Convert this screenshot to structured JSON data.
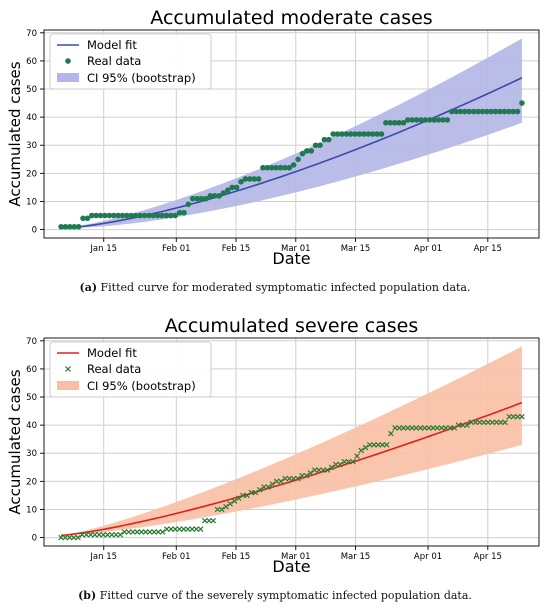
{
  "colors": {
    "moderate_line": "#3a4ba8",
    "moderate_band": "#b3b6e6",
    "moderate_points": "#1f7a52",
    "severe_line": "#e0221a",
    "severe_band": "#f8bfa4",
    "severe_points": "#2a7a30"
  },
  "captions": [
    {
      "letter": "(a)",
      "text": "Fitted curve for moderated symptomatic infected population data."
    },
    {
      "letter": "(b)",
      "text": "Fitted curve of the severely symptomatic infected population data."
    }
  ],
  "chart_data": [
    {
      "type": "line",
      "title": "Accumulated moderate cases",
      "xlabel": "Date",
      "ylabel": "Accumulated cases",
      "x_start": "2021-01-05",
      "x_end": "2021-04-23",
      "xlim": [
        "2021-01-01",
        "2021-04-27"
      ],
      "ylim": [
        -3,
        71
      ],
      "x_ticks": [
        {
          "date": "2021-01-15",
          "label": "Jan 15"
        },
        {
          "date": "2021-02-01",
          "label": "Feb 01"
        },
        {
          "date": "2021-02-15",
          "label": "Feb 15"
        },
        {
          "date": "2021-03-01",
          "label": "Mar 01"
        },
        {
          "date": "2021-03-15",
          "label": "Mar 15"
        },
        {
          "date": "2021-04-01",
          "label": "Apr 01"
        },
        {
          "date": "2021-04-15",
          "label": "Apr 15"
        }
      ],
      "y_ticks": [
        0,
        10,
        20,
        30,
        40,
        50,
        60,
        70
      ],
      "grid": true,
      "legend_position": "top-left",
      "legend": [
        "Model fit",
        "Real data",
        "CI 95% (bootstrap)"
      ],
      "marker": "circle",
      "fit_curve": {
        "power": 1.45,
        "start_value": 0.5,
        "end_value": 54
      },
      "ci_band": {
        "lower_end": 38,
        "upper_end": 68
      },
      "real_data": [
        1,
        1,
        1,
        1,
        1,
        4,
        4,
        5,
        5,
        5,
        5,
        5,
        5,
        5,
        5,
        5,
        5,
        5,
        5,
        5,
        5,
        5,
        5,
        5,
        5,
        5,
        5,
        6,
        6,
        9,
        11,
        11,
        11,
        11,
        12,
        12,
        12,
        13,
        14,
        15,
        15,
        17,
        18,
        18,
        18,
        18,
        22,
        22,
        22,
        22,
        22,
        22,
        22,
        23,
        25,
        27,
        28,
        28,
        30,
        30,
        32,
        32,
        34,
        34,
        34,
        34,
        34,
        34,
        34,
        34,
        34,
        34,
        34,
        34,
        38,
        38,
        38,
        38,
        38,
        39,
        39,
        39,
        39,
        39,
        39,
        39,
        39,
        39,
        39,
        42,
        42,
        42,
        42,
        42,
        42,
        42,
        42,
        42,
        42,
        42,
        42,
        42,
        42,
        42,
        42,
        45
      ]
    },
    {
      "type": "line",
      "title": "Accumulated severe cases",
      "xlabel": "Date",
      "ylabel": "Accumulated cases",
      "x_start": "2021-01-05",
      "x_end": "2021-04-23",
      "xlim": [
        "2021-01-01",
        "2021-04-27"
      ],
      "ylim": [
        -3,
        71
      ],
      "x_ticks": [
        {
          "date": "2021-01-15",
          "label": "Jan 15"
        },
        {
          "date": "2021-02-01",
          "label": "Feb 01"
        },
        {
          "date": "2021-02-15",
          "label": "Feb 15"
        },
        {
          "date": "2021-03-01",
          "label": "Mar 01"
        },
        {
          "date": "2021-03-15",
          "label": "Mar 15"
        },
        {
          "date": "2021-04-01",
          "label": "Apr 01"
        },
        {
          "date": "2021-04-15",
          "label": "Apr 15"
        }
      ],
      "y_ticks": [
        0,
        10,
        20,
        30,
        40,
        50,
        60,
        70
      ],
      "grid": true,
      "legend_position": "top-left",
      "legend": [
        "Model fit",
        "Real data",
        "CI 95% (bootstrap)"
      ],
      "marker": "x",
      "fit_curve": {
        "power": 1.3,
        "start_value": 0.8,
        "end_value": 48
      },
      "ci_band": {
        "lower_end": 33,
        "upper_end": 68
      },
      "real_data": [
        0,
        0,
        0,
        0,
        0,
        1,
        1,
        1,
        1,
        1,
        1,
        1,
        1,
        1,
        1,
        2,
        2,
        2,
        2,
        2,
        2,
        2,
        2,
        2,
        2,
        3,
        3,
        3,
        3,
        3,
        3,
        3,
        3,
        3,
        6,
        6,
        6,
        10,
        10,
        11,
        12,
        13,
        14,
        15,
        15,
        16,
        16,
        17,
        18,
        18,
        19,
        20,
        20,
        21,
        21,
        21,
        21,
        22,
        22,
        23,
        24,
        24,
        24,
        24,
        25,
        26,
        26,
        27,
        27,
        27,
        29,
        31,
        32,
        33,
        33,
        33,
        33,
        33,
        37,
        39,
        39,
        39,
        39,
        39,
        39,
        39,
        39,
        39,
        39,
        39,
        39,
        39,
        39,
        39,
        40,
        40,
        40,
        41,
        41,
        41,
        41,
        41,
        41,
        41,
        41,
        41,
        43,
        43,
        43,
        43
      ]
    }
  ]
}
